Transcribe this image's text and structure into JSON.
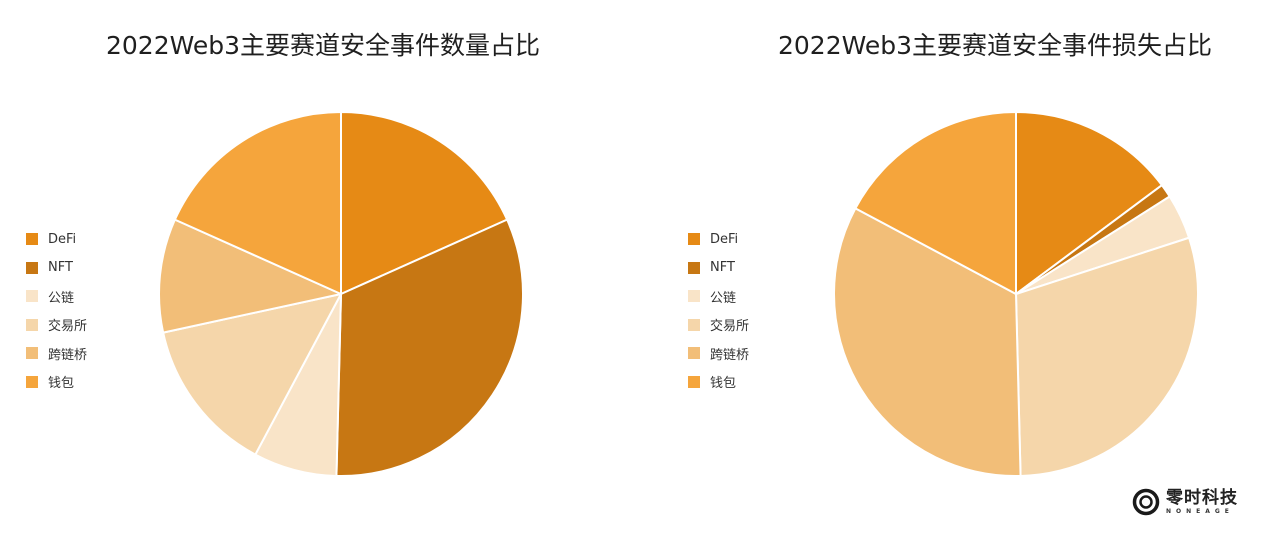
{
  "chart_data": [
    {
      "type": "pie",
      "title": "2022Web3主要赛道安全事件数量占比",
      "categories": [
        "DeFi",
        "NFT",
        "公链",
        "交易所",
        "跨链桥",
        "钱包"
      ],
      "values": [
        18.3,
        32.1,
        7.4,
        13.8,
        10.1,
        18.3
      ],
      "colors": [
        "#E68A15",
        "#C77713",
        "#F9E4C8",
        "#F5D6AA",
        "#F2BE78",
        "#F5A53C"
      ],
      "legend_position": "left",
      "start_angle": "12 o'clock, clockwise"
    },
    {
      "type": "pie",
      "title": "2022Web3主要赛道安全事件损失占比",
      "categories": [
        "DeFi",
        "NFT",
        "公链",
        "交易所",
        "跨链桥",
        "钱包"
      ],
      "values": [
        14.8,
        1.2,
        4.0,
        29.6,
        33.2,
        17.2
      ],
      "colors": [
        "#E68A15",
        "#C77713",
        "#F9E4C8",
        "#F5D6AA",
        "#F2BE78",
        "#F5A53C"
      ],
      "legend_position": "left",
      "start_angle": "12 o'clock, clockwise"
    }
  ],
  "left": {
    "title": "2022Web3主要赛道安全事件数量占比",
    "legend": [
      "DeFi",
      "NFT",
      "公链",
      "交易所",
      "跨链桥",
      "钱包"
    ]
  },
  "right": {
    "title": "2022Web3主要赛道安全事件损失占比",
    "legend": [
      "DeFi",
      "NFT",
      "公链",
      "交易所",
      "跨链桥",
      "钱包"
    ]
  },
  "brand": {
    "name_cn": "零时科技",
    "name_en": "NONEAGE"
  }
}
